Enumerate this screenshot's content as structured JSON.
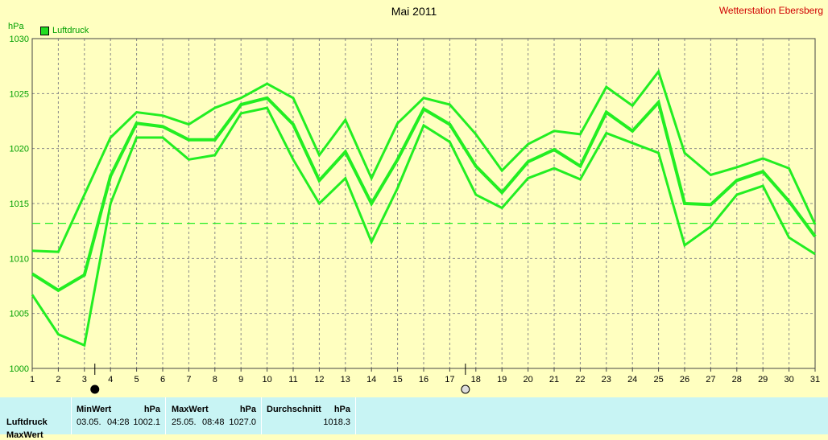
{
  "header": {
    "title": "Mai 2011",
    "station": "Wetterstation Ebersberg",
    "unit": "hPa"
  },
  "colors": {
    "background": "#ffffc0",
    "series": "#22ee22",
    "grid": "#888888",
    "footer": "#c8f4f4"
  },
  "icons": {
    "moon_new": "new-moon-icon",
    "moon_full": "full-moon-icon"
  },
  "chart_data": {
    "type": "line",
    "title": "Mai 2011",
    "ylabel": "hPa",
    "xlim": [
      1,
      31
    ],
    "ylim": [
      1000,
      1030
    ],
    "x_ticks": [
      1,
      2,
      3,
      4,
      5,
      6,
      7,
      8,
      9,
      10,
      11,
      12,
      13,
      14,
      15,
      16,
      17,
      18,
      19,
      20,
      21,
      22,
      23,
      24,
      25,
      26,
      27,
      28,
      29,
      30,
      31
    ],
    "y_ticks": [
      1000,
      1005,
      1010,
      1015,
      1020,
      1025,
      1030
    ],
    "legend": {
      "position": "top-left",
      "label": "Luftdruck"
    },
    "x": [
      1,
      2,
      3,
      4,
      5,
      6,
      7,
      8,
      9,
      10,
      11,
      12,
      13,
      14,
      15,
      16,
      17,
      18,
      19,
      20,
      21,
      22,
      23,
      24,
      25,
      26,
      27,
      28,
      29,
      30,
      31
    ],
    "series": [
      {
        "name": "max",
        "values": [
          1010.7,
          1010.6,
          1015.8,
          1021.0,
          1023.3,
          1023.0,
          1022.2,
          1023.7,
          1024.6,
          1025.9,
          1024.6,
          1019.4,
          1022.6,
          1017.3,
          1022.3,
          1024.6,
          1024.0,
          1021.3,
          1018.0,
          1020.4,
          1021.6,
          1021.3,
          1025.6,
          1023.9,
          1027.0,
          1019.6,
          1017.6,
          1018.3,
          1019.1,
          1018.2,
          1013.1
        ]
      },
      {
        "name": "avg",
        "values": [
          1008.6,
          1007.1,
          1008.5,
          1017.5,
          1022.3,
          1022.0,
          1020.8,
          1020.8,
          1024.0,
          1024.6,
          1022.2,
          1017.1,
          1019.7,
          1015.0,
          1019.0,
          1023.6,
          1022.2,
          1018.4,
          1016.0,
          1018.8,
          1019.9,
          1018.4,
          1023.3,
          1021.6,
          1024.2,
          1015.0,
          1014.9,
          1017.1,
          1017.9,
          1015.2,
          1012.0
        ]
      },
      {
        "name": "min",
        "values": [
          1006.7,
          1003.1,
          1002.1,
          1015.0,
          1021.0,
          1021.0,
          1019.0,
          1019.4,
          1023.2,
          1023.7,
          1019.0,
          1015.0,
          1017.3,
          1011.5,
          1016.4,
          1022.1,
          1020.6,
          1015.8,
          1014.6,
          1017.3,
          1018.2,
          1017.2,
          1021.4,
          1020.5,
          1019.6,
          1011.2,
          1012.9,
          1015.8,
          1016.6,
          1011.9,
          1010.4
        ]
      }
    ],
    "reference_line": {
      "value": 1013.2,
      "style": "dashed"
    },
    "moon_markers": [
      {
        "phase": "new",
        "x": 3.4
      },
      {
        "phase": "full",
        "x": 17.6
      }
    ]
  },
  "footer": {
    "row_labels": [
      "Luftdruck",
      "MaxWert"
    ],
    "min": {
      "label": "MinWert",
      "unit": "hPa",
      "date": "03.05.",
      "time": "04:28",
      "value": "1002.1"
    },
    "max": {
      "label": "MaxWert",
      "unit": "hPa",
      "date": "25.05.",
      "time": "08:48",
      "value": "1027.0"
    },
    "avg": {
      "label": "Durchschnitt",
      "unit": "hPa",
      "value": "1018.3"
    }
  }
}
